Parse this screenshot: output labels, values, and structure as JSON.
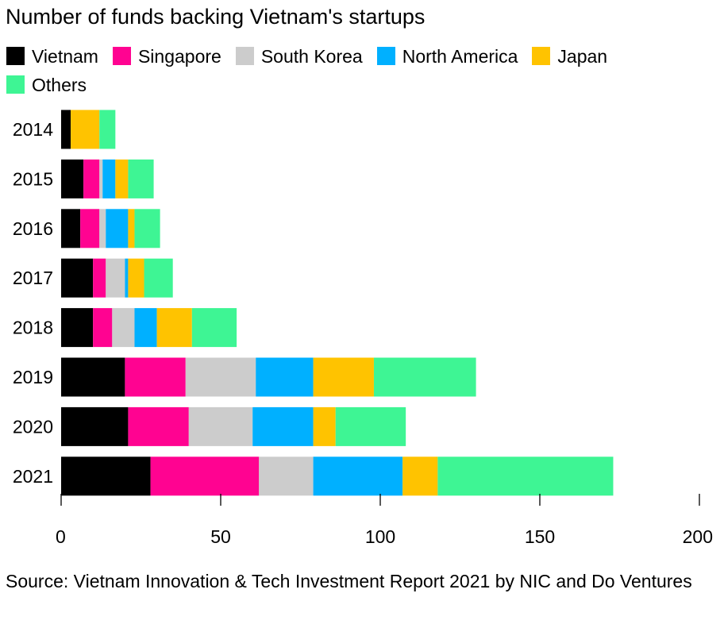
{
  "chart_data": {
    "type": "bar",
    "orientation": "horizontal",
    "stacked": true,
    "title": "Number of funds backing Vietnam's startups",
    "categories": [
      "2014",
      "2015",
      "2016",
      "2017",
      "2018",
      "2019",
      "2020",
      "2021"
    ],
    "series": [
      {
        "name": "Vietnam",
        "color": "#000000",
        "values": [
          3,
          7,
          6,
          10,
          10,
          20,
          21,
          28
        ]
      },
      {
        "name": "Singapore",
        "color": "#ff0391",
        "values": [
          0,
          5,
          6,
          4,
          6,
          19,
          19,
          34
        ]
      },
      {
        "name": "South Korea",
        "color": "#cccccc",
        "values": [
          0,
          1,
          2,
          6,
          7,
          22,
          20,
          17
        ]
      },
      {
        "name": "North America",
        "color": "#00b0ff",
        "values": [
          0,
          4,
          7,
          1,
          7,
          18,
          19,
          28
        ]
      },
      {
        "name": "Japan",
        "color": "#ffc300",
        "values": [
          9,
          4,
          2,
          5,
          11,
          19,
          7,
          11
        ]
      },
      {
        "name": "Others",
        "color": "#3ef594",
        "values": [
          5,
          8,
          8,
          9,
          14,
          32,
          22,
          55
        ]
      }
    ],
    "xlim": [
      0,
      200
    ],
    "xticks": [
      "0",
      "50",
      "100",
      "150",
      "200"
    ],
    "xlabel": "",
    "ylabel": "",
    "grid": false,
    "legend_position": "top-left"
  },
  "source": "Source: Vietnam Innovation & Tech Investment Report 2021 by NIC and Do Ventures"
}
